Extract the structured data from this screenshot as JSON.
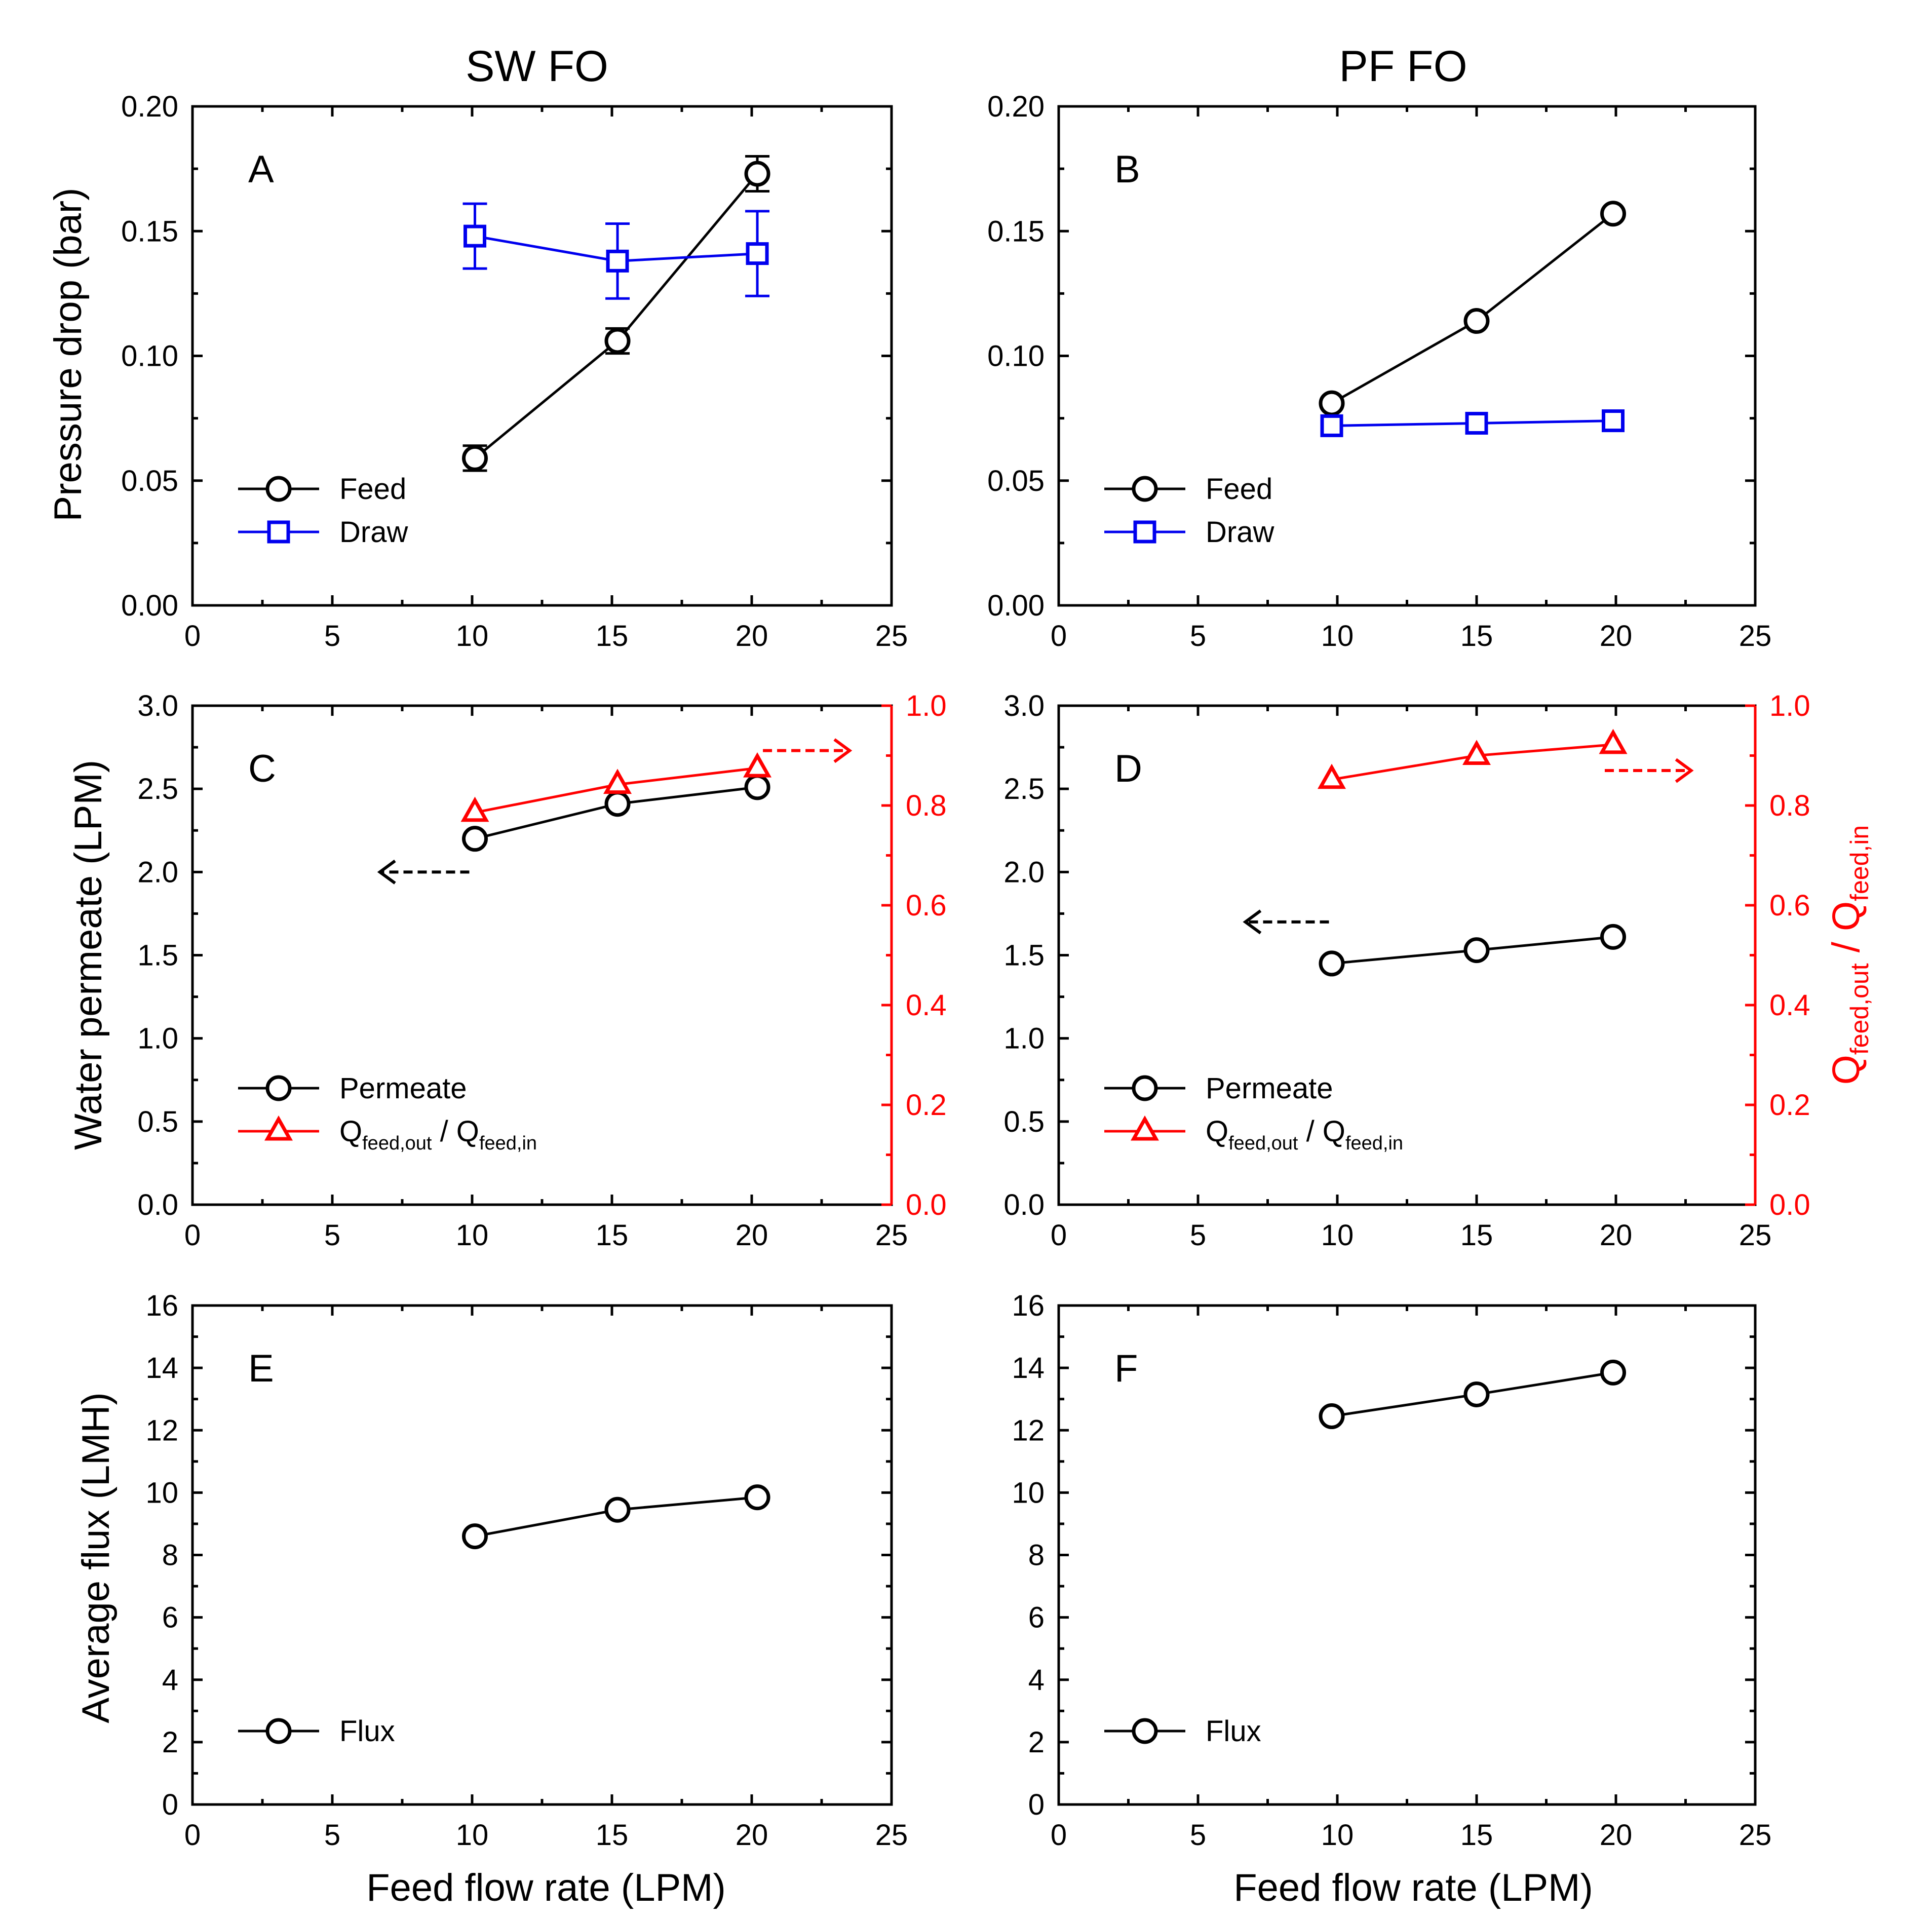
{
  "figure": {
    "column_titles": [
      "SW FO",
      "PF FO"
    ],
    "xlabel": "Feed flow rate (LPM)",
    "ylabels": {
      "pressure": "Pressure drop (bar)",
      "permeate": "Water permeate (LPM)",
      "flux": "Average flux (LMH)",
      "ratio": "Q_feed,out / Q_feed,in"
    }
  },
  "colors": {
    "black": "#000000",
    "blue": "#0000ee",
    "red": "#ff0000"
  },
  "chart_data": [
    {
      "id": "A",
      "panel_label": "A",
      "column": "SW FO",
      "type": "line",
      "xlabel": "",
      "ylabel": "Pressure drop (bar)",
      "xlim": [
        0,
        25
      ],
      "ylim": [
        0,
        0.2
      ],
      "xticks": [
        "0",
        "5",
        "10",
        "15",
        "20",
        "25"
      ],
      "yticks": [
        "0.00",
        "0.05",
        "0.10",
        "0.15",
        "0.20"
      ],
      "legend_position": "bottom-left",
      "series": [
        {
          "name": "Feed",
          "marker": "circle",
          "color": "#000000",
          "x": [
            10.1,
            15.2,
            20.2
          ],
          "y": [
            0.059,
            0.106,
            0.173
          ],
          "err": [
            0.005,
            0.005,
            0.007
          ]
        },
        {
          "name": "Draw",
          "marker": "square",
          "color": "#0000ee",
          "x": [
            10.1,
            15.2,
            20.2
          ],
          "y": [
            0.148,
            0.138,
            0.141
          ],
          "err": [
            0.013,
            0.015,
            0.017
          ]
        }
      ]
    },
    {
      "id": "B",
      "panel_label": "B",
      "column": "PF FO",
      "type": "line",
      "xlabel": "",
      "ylabel": "",
      "xlim": [
        0,
        25
      ],
      "ylim": [
        0,
        0.2
      ],
      "xticks": [
        "0",
        "5",
        "10",
        "15",
        "20",
        "25"
      ],
      "yticks": [
        "0.00",
        "0.05",
        "0.10",
        "0.15",
        "0.20"
      ],
      "legend_position": "bottom-left",
      "series": [
        {
          "name": "Feed",
          "marker": "circle",
          "color": "#000000",
          "x": [
            9.8,
            15.0,
            19.9
          ],
          "y": [
            0.081,
            0.114,
            0.157
          ]
        },
        {
          "name": "Draw",
          "marker": "square",
          "color": "#0000ee",
          "x": [
            9.8,
            15.0,
            19.9
          ],
          "y": [
            0.072,
            0.073,
            0.074
          ]
        }
      ]
    },
    {
      "id": "C",
      "panel_label": "C",
      "column": "SW FO",
      "type": "line",
      "xlabel": "",
      "ylabel": "Water permeate (LPM)",
      "ylabel_right": "",
      "xlim": [
        0,
        25
      ],
      "ylim": [
        0,
        3.0
      ],
      "ylim_right": [
        0,
        1.0
      ],
      "xticks": [
        "0",
        "5",
        "10",
        "15",
        "20",
        "25"
      ],
      "yticks": [
        "0.0",
        "0.5",
        "1.0",
        "1.5",
        "2.0",
        "2.5",
        "3.0"
      ],
      "yticks_right": [
        "0.0",
        "0.2",
        "0.4",
        "0.6",
        "0.8",
        "1.0"
      ],
      "legend_position": "bottom-left",
      "series": [
        {
          "name": "Permeate",
          "marker": "circle",
          "color": "#000000",
          "axis": "left",
          "x": [
            10.1,
            15.2,
            20.2
          ],
          "y": [
            2.2,
            2.41,
            2.51
          ]
        },
        {
          "name": "Q_feed,out / Q_feed,in",
          "marker": "triangle",
          "color": "#ff0000",
          "axis": "right",
          "x": [
            10.1,
            15.2,
            20.2
          ],
          "y": [
            0.786,
            0.842,
            0.875
          ]
        }
      ],
      "arrows": [
        {
          "direction": "left",
          "color": "#000000",
          "x": [
            9.9,
            6.7
          ],
          "y": 2.0,
          "axis": "left"
        },
        {
          "direction": "right",
          "color": "#ff0000",
          "x": [
            20.4,
            23.5
          ],
          "y": 0.91,
          "axis": "right"
        }
      ]
    },
    {
      "id": "D",
      "panel_label": "D",
      "column": "PF FO",
      "type": "line",
      "xlabel": "",
      "ylabel": "",
      "ylabel_right": "Q_feed,out / Q_feed,in",
      "xlim": [
        0,
        25
      ],
      "ylim": [
        0,
        3.0
      ],
      "ylim_right": [
        0,
        1.0
      ],
      "xticks": [
        "0",
        "5",
        "10",
        "15",
        "20",
        "25"
      ],
      "yticks": [
        "0.0",
        "0.5",
        "1.0",
        "1.5",
        "2.0",
        "2.5",
        "3.0"
      ],
      "yticks_right": [
        "0.0",
        "0.2",
        "0.4",
        "0.6",
        "0.8",
        "1.0"
      ],
      "legend_position": "bottom-left",
      "series": [
        {
          "name": "Permeate",
          "marker": "circle",
          "color": "#000000",
          "axis": "left",
          "x": [
            9.8,
            15.0,
            19.9
          ],
          "y": [
            1.45,
            1.53,
            1.61
          ]
        },
        {
          "name": "Q_feed,out / Q_feed,in",
          "marker": "triangle",
          "color": "#ff0000",
          "axis": "right",
          "x": [
            9.8,
            15.0,
            19.9
          ],
          "y": [
            0.852,
            0.9,
            0.922
          ]
        }
      ],
      "arrows": [
        {
          "direction": "left",
          "color": "#000000",
          "x": [
            9.7,
            6.7
          ],
          "y": 1.7,
          "axis": "left"
        },
        {
          "direction": "right",
          "color": "#ff0000",
          "x": [
            19.6,
            22.7
          ],
          "y": 0.87,
          "axis": "right"
        }
      ]
    },
    {
      "id": "E",
      "panel_label": "E",
      "column": "SW FO",
      "type": "line",
      "xlabel": "Feed flow rate (LPM)",
      "ylabel": "Average flux (LMH)",
      "xlim": [
        0,
        25
      ],
      "ylim": [
        0,
        16
      ],
      "xticks": [
        "0",
        "5",
        "10",
        "15",
        "20",
        "25"
      ],
      "yticks": [
        "0",
        "2",
        "4",
        "6",
        "8",
        "10",
        "12",
        "14",
        "16"
      ],
      "legend_position": "bottom-left",
      "series": [
        {
          "name": "Flux",
          "marker": "circle",
          "color": "#000000",
          "x": [
            10.1,
            15.2,
            20.2
          ],
          "y": [
            8.6,
            9.45,
            9.85
          ]
        }
      ]
    },
    {
      "id": "F",
      "panel_label": "F",
      "column": "PF FO",
      "type": "line",
      "xlabel": "Feed flow rate (LPM)",
      "ylabel": "",
      "xlim": [
        0,
        25
      ],
      "ylim": [
        0,
        16
      ],
      "xticks": [
        "0",
        "5",
        "10",
        "15",
        "20",
        "25"
      ],
      "yticks": [
        "0",
        "2",
        "4",
        "6",
        "8",
        "10",
        "12",
        "14",
        "16"
      ],
      "legend_position": "bottom-left",
      "series": [
        {
          "name": "Flux",
          "marker": "circle",
          "color": "#000000",
          "x": [
            9.8,
            15.0,
            19.9
          ],
          "y": [
            12.45,
            13.15,
            13.85
          ]
        }
      ]
    }
  ]
}
